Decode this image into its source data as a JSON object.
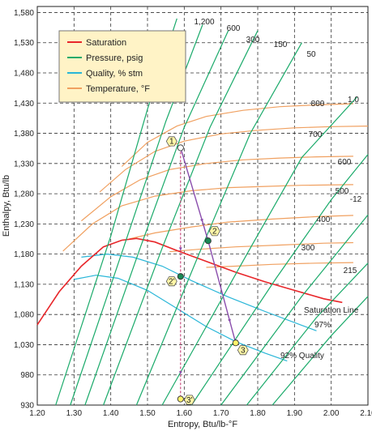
{
  "chart_data": {
    "type": "line",
    "xlabel": "Entropy, Btu/lb-°F",
    "ylabel": "Enthalpy, Btu/lb",
    "xlim": [
      1.2,
      2.1
    ],
    "ylim": [
      930,
      1590
    ],
    "x_ticks": [
      "1.20",
      "1.30",
      "1.40",
      "1.50",
      "1.60",
      "1.70",
      "1.80",
      "1.90",
      "2.00",
      "2.10"
    ],
    "y_ticks": [
      "930",
      "980",
      "1,030",
      "1,080",
      "1,130",
      "1,180",
      "1,230",
      "1,280",
      "1,330",
      "1,380",
      "1,430",
      "1,480",
      "1,530",
      "1,580"
    ],
    "grid": true,
    "colors": {
      "saturation": "#e8262a",
      "pressure": "#1aaa6a",
      "quality": "#29b6d8",
      "temperature": "#f0a060",
      "process": "#8a4dac",
      "ideal": "#c0306a",
      "point_fill": "#fff36a",
      "point_green": "#1a8a55"
    },
    "legend": {
      "position": "top-left",
      "entries": [
        {
          "name": "Saturation",
          "color": "#e8262a"
        },
        {
          "name": "Pressure, psig",
          "color": "#1aaa6a"
        },
        {
          "name": "Quality, % stm",
          "color": "#29b6d8"
        },
        {
          "name": "Temperature, °F",
          "color": "#f0a060"
        }
      ]
    },
    "saturation_line": {
      "label": "Saturation Line",
      "points": [
        [
          1.2,
          1063
        ],
        [
          1.26,
          1118
        ],
        [
          1.32,
          1160
        ],
        [
          1.38,
          1192
        ],
        [
          1.43,
          1203
        ],
        [
          1.47,
          1206
        ],
        [
          1.52,
          1200
        ],
        [
          1.58,
          1186
        ],
        [
          1.66,
          1168
        ],
        [
          1.74,
          1150
        ],
        [
          1.82,
          1134
        ],
        [
          1.9,
          1120
        ],
        [
          1.98,
          1106
        ],
        [
          2.03,
          1100
        ]
      ]
    },
    "pressure_lines": [
      {
        "label": "1,200",
        "points": [
          [
            1.25,
            930
          ],
          [
            1.4,
            1210
          ],
          [
            1.5,
            1420
          ],
          [
            1.58,
            1570
          ]
        ]
      },
      {
        "label": "600",
        "points": [
          [
            1.29,
            930
          ],
          [
            1.44,
            1200
          ],
          [
            1.55,
            1400
          ],
          [
            1.65,
            1560
          ]
        ]
      },
      {
        "label": "300",
        "points": [
          [
            1.33,
            930
          ],
          [
            1.48,
            1190
          ],
          [
            1.6,
            1390
          ],
          [
            1.72,
            1550
          ]
        ]
      },
      {
        "label": "150",
        "points": [
          [
            1.38,
            930
          ],
          [
            1.54,
            1190
          ],
          [
            1.67,
            1390
          ],
          [
            1.8,
            1550
          ]
        ]
      },
      {
        "label": "50",
        "points": [
          [
            1.47,
            930
          ],
          [
            1.64,
            1180
          ],
          [
            1.78,
            1380
          ],
          [
            1.92,
            1530
          ]
        ]
      },
      {
        "label": "1.0",
        "points": [
          [
            1.54,
            930
          ],
          [
            1.78,
            1190
          ],
          [
            1.92,
            1340
          ],
          [
            2.07,
            1440
          ]
        ]
      },
      {
        "label": "",
        "points": [
          [
            1.62,
            930
          ],
          [
            1.85,
            1140
          ],
          [
            2.0,
            1270
          ],
          [
            2.1,
            1345
          ]
        ]
      },
      {
        "label": "-12",
        "points": [
          [
            1.7,
            930
          ],
          [
            1.92,
            1110
          ],
          [
            2.04,
            1200
          ],
          [
            2.1,
            1245
          ]
        ]
      },
      {
        "label": "",
        "points": [
          [
            1.77,
            930
          ],
          [
            1.96,
            1075
          ],
          [
            2.1,
            1165
          ]
        ]
      },
      {
        "label": "",
        "points": [
          [
            1.84,
            930
          ],
          [
            2.0,
            1045
          ],
          [
            2.1,
            1110
          ]
        ]
      }
    ],
    "quality_lines": [
      {
        "label": "97%",
        "points": [
          [
            1.32,
            1175
          ],
          [
            1.39,
            1180
          ],
          [
            1.46,
            1175
          ],
          [
            1.54,
            1160
          ],
          [
            1.62,
            1136
          ],
          [
            1.72,
            1109
          ],
          [
            1.82,
            1085
          ],
          [
            1.92,
            1062
          ],
          [
            1.96,
            1053
          ]
        ]
      },
      {
        "label": "92% Quality",
        "points": [
          [
            1.3,
            1138
          ],
          [
            1.36,
            1145
          ],
          [
            1.42,
            1140
          ],
          [
            1.5,
            1120
          ],
          [
            1.58,
            1090
          ],
          [
            1.66,
            1060
          ],
          [
            1.74,
            1035
          ],
          [
            1.82,
            1016
          ],
          [
            1.88,
            1003
          ]
        ]
      }
    ],
    "temperature_lines": [
      {
        "label": "800",
        "points": [
          [
            1.43,
            1325
          ],
          [
            1.5,
            1365
          ],
          [
            1.58,
            1392
          ],
          [
            1.66,
            1408
          ],
          [
            1.76,
            1418
          ],
          [
            1.86,
            1424
          ],
          [
            1.96,
            1427
          ],
          [
            2.06,
            1429
          ]
        ]
      },
      {
        "label": "700",
        "points": [
          [
            1.37,
            1283
          ],
          [
            1.44,
            1320
          ],
          [
            1.52,
            1350
          ],
          [
            1.6,
            1367
          ],
          [
            1.7,
            1379
          ],
          [
            1.8,
            1385
          ],
          [
            1.9,
            1389
          ],
          [
            2.0,
            1391
          ],
          [
            2.1,
            1392
          ]
        ]
      },
      {
        "label": "600",
        "points": [
          [
            1.32,
            1235
          ],
          [
            1.4,
            1275
          ],
          [
            1.48,
            1303
          ],
          [
            1.56,
            1320
          ],
          [
            1.66,
            1330
          ],
          [
            1.76,
            1336
          ],
          [
            1.86,
            1339
          ],
          [
            1.96,
            1341
          ],
          [
            2.06,
            1342
          ]
        ]
      },
      {
        "label": "500",
        "points": [
          [
            1.27,
            1185
          ],
          [
            1.35,
            1230
          ],
          [
            1.43,
            1260
          ],
          [
            1.52,
            1276
          ],
          [
            1.62,
            1285
          ],
          [
            1.72,
            1290
          ],
          [
            1.82,
            1292
          ],
          [
            1.92,
            1294
          ],
          [
            2.06,
            1295
          ]
        ]
      },
      {
        "label": "400",
        "points": [
          [
            1.45,
            1205
          ],
          [
            1.52,
            1215
          ],
          [
            1.62,
            1225
          ],
          [
            1.72,
            1233
          ],
          [
            1.84,
            1238
          ],
          [
            1.96,
            1242
          ],
          [
            2.06,
            1244
          ]
        ]
      },
      {
        "label": "300",
        "points": [
          [
            1.56,
            1184
          ],
          [
            1.64,
            1188
          ],
          [
            1.74,
            1192
          ],
          [
            1.86,
            1195
          ],
          [
            1.98,
            1198
          ],
          [
            2.06,
            1199
          ]
        ]
      },
      {
        "label": "215",
        "points": [
          [
            1.66,
            1158
          ],
          [
            1.74,
            1160
          ],
          [
            1.84,
            1163
          ],
          [
            1.96,
            1165
          ],
          [
            2.06,
            1166
          ]
        ]
      }
    ],
    "process": {
      "actual": [
        [
          1.59,
          1356
        ],
        [
          1.665,
          1202
        ],
        [
          1.74,
          1033
        ]
      ],
      "ideal": [
        [
          1.59,
          1356
        ],
        [
          1.59,
          1143
        ],
        [
          1.59,
          940
        ]
      ]
    },
    "state_points": [
      {
        "label": "1",
        "x": 1.59,
        "y": 1356,
        "fill": "#ffffff"
      },
      {
        "label": "2",
        "x": 1.665,
        "y": 1202,
        "fill": "#1a8a55"
      },
      {
        "label": "2'",
        "x": 1.59,
        "y": 1143,
        "fill": "#1a8a55"
      },
      {
        "label": "3",
        "x": 1.74,
        "y": 1033,
        "fill": "#fff36a"
      },
      {
        "label": "3'",
        "x": 1.59,
        "y": 940,
        "fill": "#fff36a"
      }
    ]
  }
}
